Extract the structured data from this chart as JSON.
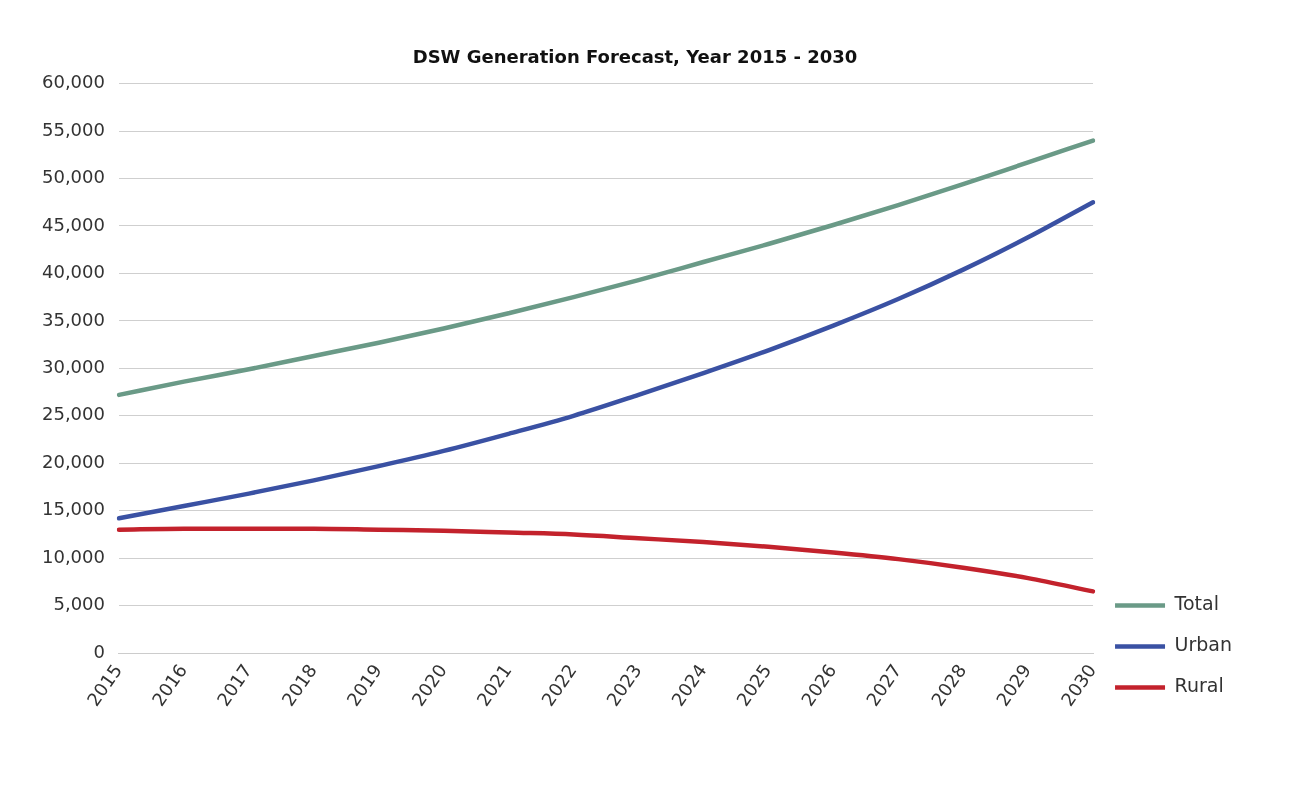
{
  "chart_data": {
    "type": "line",
    "title": "DSW Generation Forecast, Year 2015 - 2030",
    "categories": [
      "2015",
      "2016",
      "2017",
      "2018",
      "2019",
      "2020",
      "2021",
      "2022",
      "2023",
      "2024",
      "2025",
      "2026",
      "2027",
      "2028",
      "2029",
      "2030"
    ],
    "series": [
      {
        "name": "Total",
        "color": "#6a9a87",
        "values": [
          27200,
          28600,
          29900,
          31300,
          32700,
          34200,
          35800,
          37500,
          39300,
          41200,
          43100,
          45100,
          47200,
          49400,
          51700,
          54000
        ]
      },
      {
        "name": "Urban",
        "color": "#3a51a3",
        "values": [
          14200,
          15500,
          16800,
          18200,
          19700,
          21300,
          23100,
          25000,
          27200,
          29500,
          31900,
          34500,
          37300,
          40400,
          43800,
          47500
        ]
      },
      {
        "name": "Rural",
        "color": "#c3222c",
        "values": [
          13000,
          13100,
          13100,
          13100,
          13000,
          12900,
          12700,
          12500,
          12100,
          11700,
          11200,
          10600,
          9900,
          9000,
          7900,
          6500
        ]
      }
    ],
    "ylim": [
      0,
      60000
    ],
    "yticks": [
      {
        "value": 0,
        "label": "0"
      },
      {
        "value": 5000,
        "label": "5,000"
      },
      {
        "value": 10000,
        "label": "10,000"
      },
      {
        "value": 15000,
        "label": "15,000"
      },
      {
        "value": 20000,
        "label": "20,000"
      },
      {
        "value": 25000,
        "label": "25,000"
      },
      {
        "value": 30000,
        "label": "30,000"
      },
      {
        "value": 35000,
        "label": "35,000"
      },
      {
        "value": 40000,
        "label": "40,000"
      },
      {
        "value": 45000,
        "label": "45,000"
      },
      {
        "value": 50000,
        "label": "50,000"
      },
      {
        "value": 55000,
        "label": "55,000"
      },
      {
        "value": 60000,
        "label": "60,000"
      }
    ],
    "grid": "y",
    "legend": "right",
    "marker": "none",
    "line_style": "solid"
  }
}
